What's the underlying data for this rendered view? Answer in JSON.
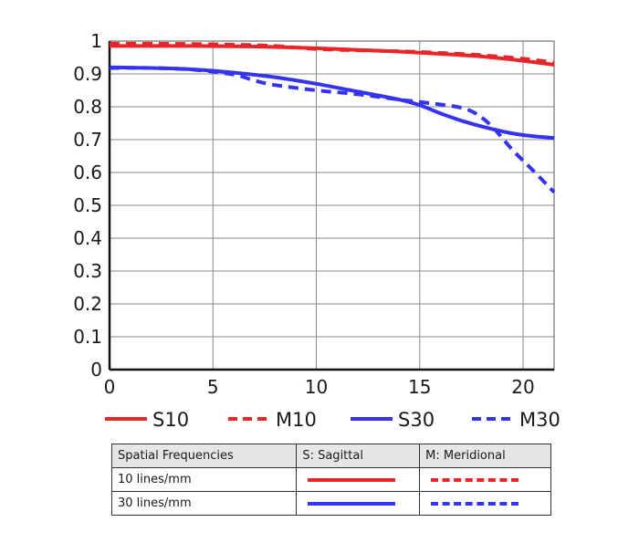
{
  "chart_data": {
    "type": "line",
    "xlim": [
      0,
      21.5
    ],
    "ylim": [
      0,
      1
    ],
    "x_ticks": [
      "0",
      "5",
      "10",
      "15",
      "20"
    ],
    "y_ticks": [
      "0",
      "0.1",
      "0.2",
      "0.3",
      "0.4",
      "0.5",
      "0.6",
      "0.7",
      "0.8",
      "0.9",
      "1"
    ],
    "grid": true,
    "legend_position": "bottom",
    "series": [
      {
        "name": "S10",
        "color": "#e8262a",
        "dash": false,
        "x": [
          0,
          2,
          4,
          6,
          8,
          10,
          12,
          14,
          16,
          18,
          20,
          21.5
        ],
        "y": [
          0.985,
          0.985,
          0.985,
          0.984,
          0.982,
          0.978,
          0.973,
          0.968,
          0.961,
          0.953,
          0.94,
          0.928
        ]
      },
      {
        "name": "M10",
        "color": "#e8262a",
        "dash": true,
        "x": [
          0,
          2,
          4,
          6,
          8,
          10,
          12,
          14,
          16,
          18,
          20,
          21.5
        ],
        "y": [
          0.992,
          0.992,
          0.991,
          0.989,
          0.985,
          0.976,
          0.972,
          0.969,
          0.964,
          0.957,
          0.946,
          0.935
        ]
      },
      {
        "name": "S30",
        "color": "#3434f0",
        "dash": false,
        "x": [
          0,
          2,
          4,
          6,
          8,
          10,
          12,
          14,
          15,
          16,
          17,
          18,
          19,
          20,
          21.5
        ],
        "y": [
          0.92,
          0.918,
          0.914,
          0.904,
          0.89,
          0.87,
          0.846,
          0.822,
          0.805,
          0.78,
          0.758,
          0.74,
          0.725,
          0.714,
          0.705
        ]
      },
      {
        "name": "M30",
        "color": "#3434f0",
        "dash": true,
        "x": [
          0,
          2,
          4,
          6,
          7,
          8,
          10,
          12,
          14,
          16,
          17,
          17.7,
          18.5,
          19.5,
          20.5,
          21.5
        ],
        "y": [
          0.918,
          0.918,
          0.913,
          0.898,
          0.88,
          0.866,
          0.85,
          0.838,
          0.822,
          0.807,
          0.797,
          0.78,
          0.74,
          0.668,
          0.605,
          0.54
        ]
      }
    ]
  },
  "table": {
    "headers": [
      "Spatial Frequencies",
      "S: Sagittal",
      "M: Meridional"
    ],
    "rows": [
      {
        "label": "10 lines/mm"
      },
      {
        "label": "30 lines/mm"
      }
    ]
  }
}
